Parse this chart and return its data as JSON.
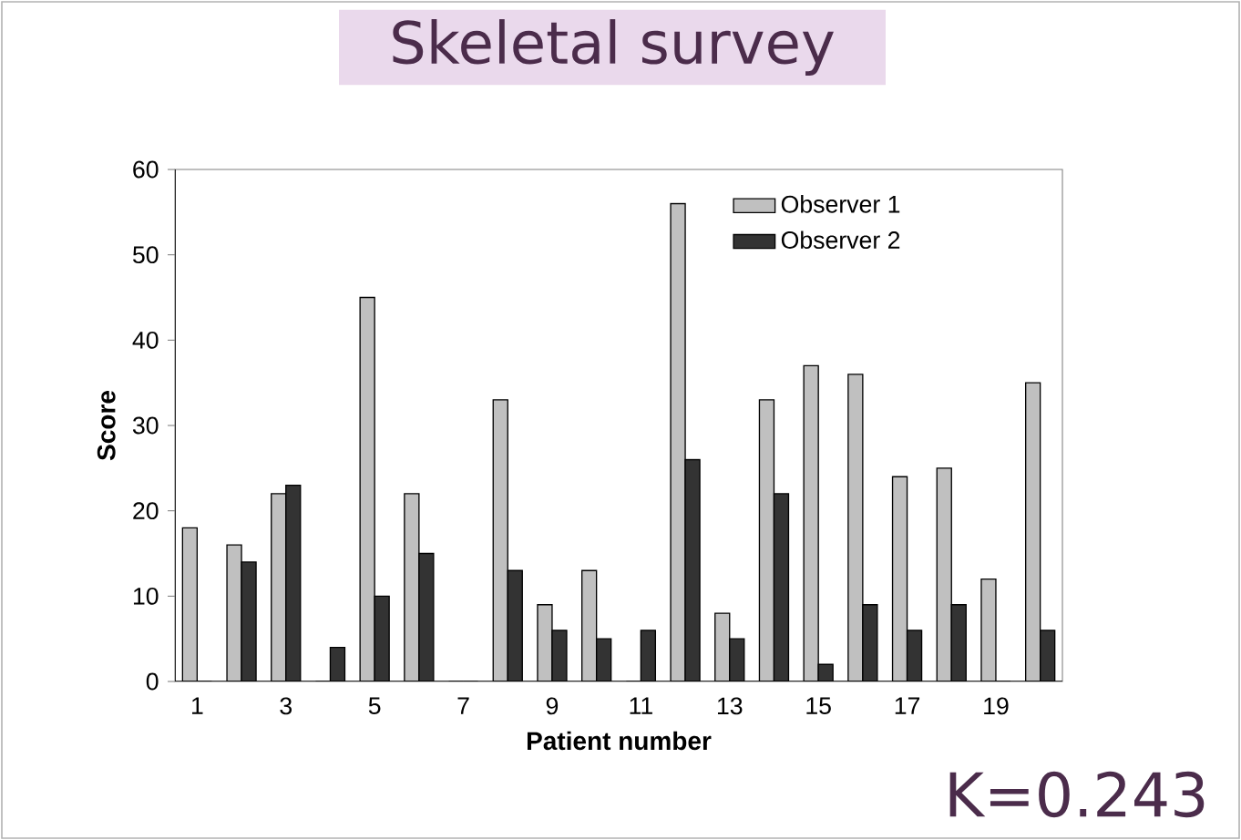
{
  "chart_data": {
    "type": "bar",
    "title": "Skeletal survey",
    "xlabel": "Patient number",
    "ylabel": "Score",
    "annotations": [
      "K=0.243"
    ],
    "categories": [
      "1",
      null,
      "3",
      null,
      "5",
      null,
      "7",
      null,
      "9",
      null,
      "11",
      null,
      "13",
      null,
      "15",
      null,
      "17",
      null,
      "19",
      null
    ],
    "series": [
      {
        "name": "Observer 1",
        "color": "#c0c0c0",
        "values": [
          18,
          16,
          22,
          0,
          45,
          22,
          0,
          33,
          9,
          13,
          0,
          56,
          8,
          33,
          37,
          36,
          24,
          25,
          12,
          35
        ]
      },
      {
        "name": "Observer 2",
        "color": "#333333",
        "values": [
          0,
          14,
          23,
          4,
          10,
          15,
          0,
          13,
          6,
          5,
          6,
          26,
          5,
          22,
          2,
          9,
          6,
          9,
          0,
          6
        ]
      }
    ],
    "ylim": [
      0,
      60
    ],
    "yticks": [
      0,
      10,
      20,
      30,
      40,
      50,
      60
    ],
    "legend": "top right",
    "grid": false
  }
}
